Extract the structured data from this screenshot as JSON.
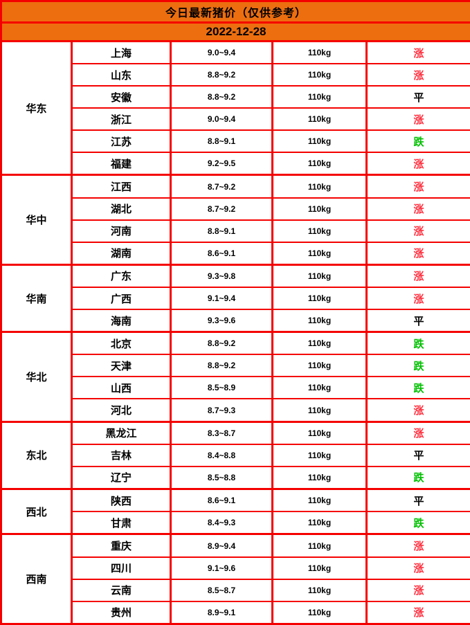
{
  "header": {
    "title": "今日最新猪价（仅供参考）",
    "date": "2022-12-28"
  },
  "colors": {
    "header_bg": "#ED6E0F",
    "border": "#F50000",
    "trend_up": "#FF3140",
    "trend_down": "#00C000",
    "trend_flat": "#000000"
  },
  "chart_data": {
    "type": "table",
    "title": "今日最新猪价（仅供参考）",
    "date": "2022-12-28",
    "regions": [
      {
        "name": "华东",
        "rows": [
          {
            "province": "上海",
            "price": "9.0~9.4",
            "weight": "110kg",
            "trend": "涨",
            "direction": "up"
          },
          {
            "province": "山东",
            "price": "8.8~9.2",
            "weight": "110kg",
            "trend": "涨",
            "direction": "up"
          },
          {
            "province": "安徽",
            "price": "8.8~9.2",
            "weight": "110kg",
            "trend": "平",
            "direction": "flat"
          },
          {
            "province": "浙江",
            "price": "9.0~9.4",
            "weight": "110kg",
            "trend": "涨",
            "direction": "up"
          },
          {
            "province": "江苏",
            "price": "8.8~9.1",
            "weight": "110kg",
            "trend": "跌",
            "direction": "down"
          },
          {
            "province": "福建",
            "price": "9.2~9.5",
            "weight": "110kg",
            "trend": "涨",
            "direction": "up"
          }
        ]
      },
      {
        "name": "华中",
        "rows": [
          {
            "province": "江西",
            "price": "8.7~9.2",
            "weight": "110kg",
            "trend": "涨",
            "direction": "up"
          },
          {
            "province": "湖北",
            "price": "8.7~9.2",
            "weight": "110kg",
            "trend": "涨",
            "direction": "up"
          },
          {
            "province": "河南",
            "price": "8.8~9.1",
            "weight": "110kg",
            "trend": "涨",
            "direction": "up"
          },
          {
            "province": "湖南",
            "price": "8.6~9.1",
            "weight": "110kg",
            "trend": "涨",
            "direction": "up"
          }
        ]
      },
      {
        "name": "华南",
        "rows": [
          {
            "province": "广东",
            "price": "9.3~9.8",
            "weight": "110kg",
            "trend": "涨",
            "direction": "up"
          },
          {
            "province": "广西",
            "price": "9.1~9.4",
            "weight": "110kg",
            "trend": "涨",
            "direction": "up"
          },
          {
            "province": "海南",
            "price": "9.3~9.6",
            "weight": "110kg",
            "trend": "平",
            "direction": "flat"
          }
        ]
      },
      {
        "name": "华北",
        "rows": [
          {
            "province": "北京",
            "price": "8.8~9.2",
            "weight": "110kg",
            "trend": "跌",
            "direction": "down"
          },
          {
            "province": "天津",
            "price": "8.8~9.2",
            "weight": "110kg",
            "trend": "跌",
            "direction": "down"
          },
          {
            "province": "山西",
            "price": "8.5~8.9",
            "weight": "110kg",
            "trend": "跌",
            "direction": "down"
          },
          {
            "province": "河北",
            "price": "8.7~9.3",
            "weight": "110kg",
            "trend": "涨",
            "direction": "up"
          }
        ]
      },
      {
        "name": "东北",
        "rows": [
          {
            "province": "黑龙江",
            "price": "8.3~8.7",
            "weight": "110kg",
            "trend": "涨",
            "direction": "up"
          },
          {
            "province": "吉林",
            "price": "8.4~8.8",
            "weight": "110kg",
            "trend": "平",
            "direction": "flat"
          },
          {
            "province": "辽宁",
            "price": "8.5~8.8",
            "weight": "110kg",
            "trend": "跌",
            "direction": "down"
          }
        ]
      },
      {
        "name": "西北",
        "rows": [
          {
            "province": "陕西",
            "price": "8.6~9.1",
            "weight": "110kg",
            "trend": "平",
            "direction": "flat"
          },
          {
            "province": "甘肃",
            "price": "8.4~9.3",
            "weight": "110kg",
            "trend": "跌",
            "direction": "down"
          }
        ]
      },
      {
        "name": "西南",
        "rows": [
          {
            "province": "重庆",
            "price": "8.9~9.4",
            "weight": "110kg",
            "trend": "涨",
            "direction": "up"
          },
          {
            "province": "四川",
            "price": "9.1~9.6",
            "weight": "110kg",
            "trend": "涨",
            "direction": "up"
          },
          {
            "province": "云南",
            "price": "8.5~8.7",
            "weight": "110kg",
            "trend": "涨",
            "direction": "up"
          },
          {
            "province": "贵州",
            "price": "8.9~9.1",
            "weight": "110kg",
            "trend": "涨",
            "direction": "up"
          }
        ]
      }
    ]
  }
}
